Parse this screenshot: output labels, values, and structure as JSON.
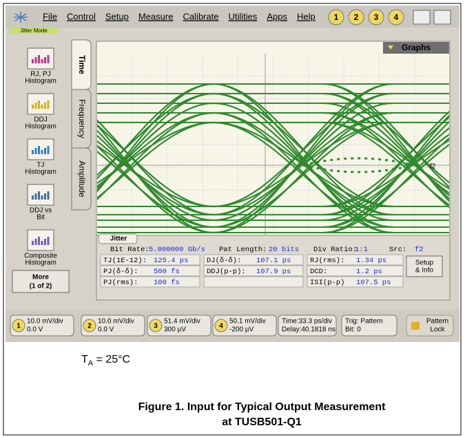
{
  "menu": {
    "items": [
      "File",
      "Control",
      "Setup",
      "Measure",
      "Calibrate",
      "Utilities",
      "Apps",
      "Help"
    ],
    "channels": [
      "1",
      "2",
      "3",
      "4"
    ],
    "mode": "Jitter Mode"
  },
  "left_panel": {
    "buttons": [
      [
        "RJ, PJ",
        "Histogram"
      ],
      [
        "DDJ",
        "Histogram"
      ],
      [
        "TJ",
        "Histogram"
      ],
      [
        "DDJ vs",
        "Bit"
      ],
      [
        "Composite",
        "Histogram"
      ]
    ],
    "more": [
      "More",
      "(1 of 2)"
    ],
    "tabs": [
      "Time",
      "Frequency",
      "Amplitude"
    ]
  },
  "graph": {
    "menu": "Graphs",
    "marker": "f2"
  },
  "jitter": {
    "tab": "Jitter",
    "header": [
      [
        "Bit Rate:",
        "5.000000 Gb/s"
      ],
      [
        "Pat Length:",
        "20 bits"
      ],
      [
        "Div Ratio:",
        "1:1"
      ],
      [
        "Src:",
        "f2"
      ]
    ],
    "rows": [
      [
        [
          "TJ(1E-12):",
          "125.4 ps"
        ],
        [
          "DJ(δ-δ):",
          "107.1 ps"
        ],
        [
          "RJ(rms):",
          "1.34 ps"
        ]
      ],
      [
        [
          "PJ(δ-δ):",
          "500 fs"
        ],
        [
          "DDJ(p-p):",
          "107.9 ps"
        ],
        [
          "DCD:",
          "1.2 ps"
        ]
      ],
      [
        [
          "PJ(rms):",
          "100 fs"
        ],
        [
          "",
          ""
        ],
        [
          "ISI(p-p)",
          "107.5 ps"
        ]
      ]
    ],
    "button": [
      "Setup",
      "& Info"
    ]
  },
  "bottom": {
    "channels": [
      [
        "1",
        "10.0 mV/div",
        "0.0 V"
      ],
      [
        "2",
        "10.0 mV/div",
        "0.0 V"
      ],
      [
        "3",
        "51.4 mV/div",
        "300 µV"
      ],
      [
        "4",
        "50.1 mV/div",
        "-200 µV"
      ]
    ],
    "time": [
      "Time:33.3 ps/div",
      "Delay:40.1818 ns"
    ],
    "trigger": [
      "Trig: Pattern",
      "Bit: 0"
    ],
    "lock": [
      "Pattern",
      "Lock"
    ]
  },
  "condition": {
    "symbol": "T",
    "subscript": "A",
    "text": " = 25°C"
  },
  "caption": [
    "Figure 1. Input for Typical Output Measurement",
    "at TUSB501-Q1"
  ]
}
